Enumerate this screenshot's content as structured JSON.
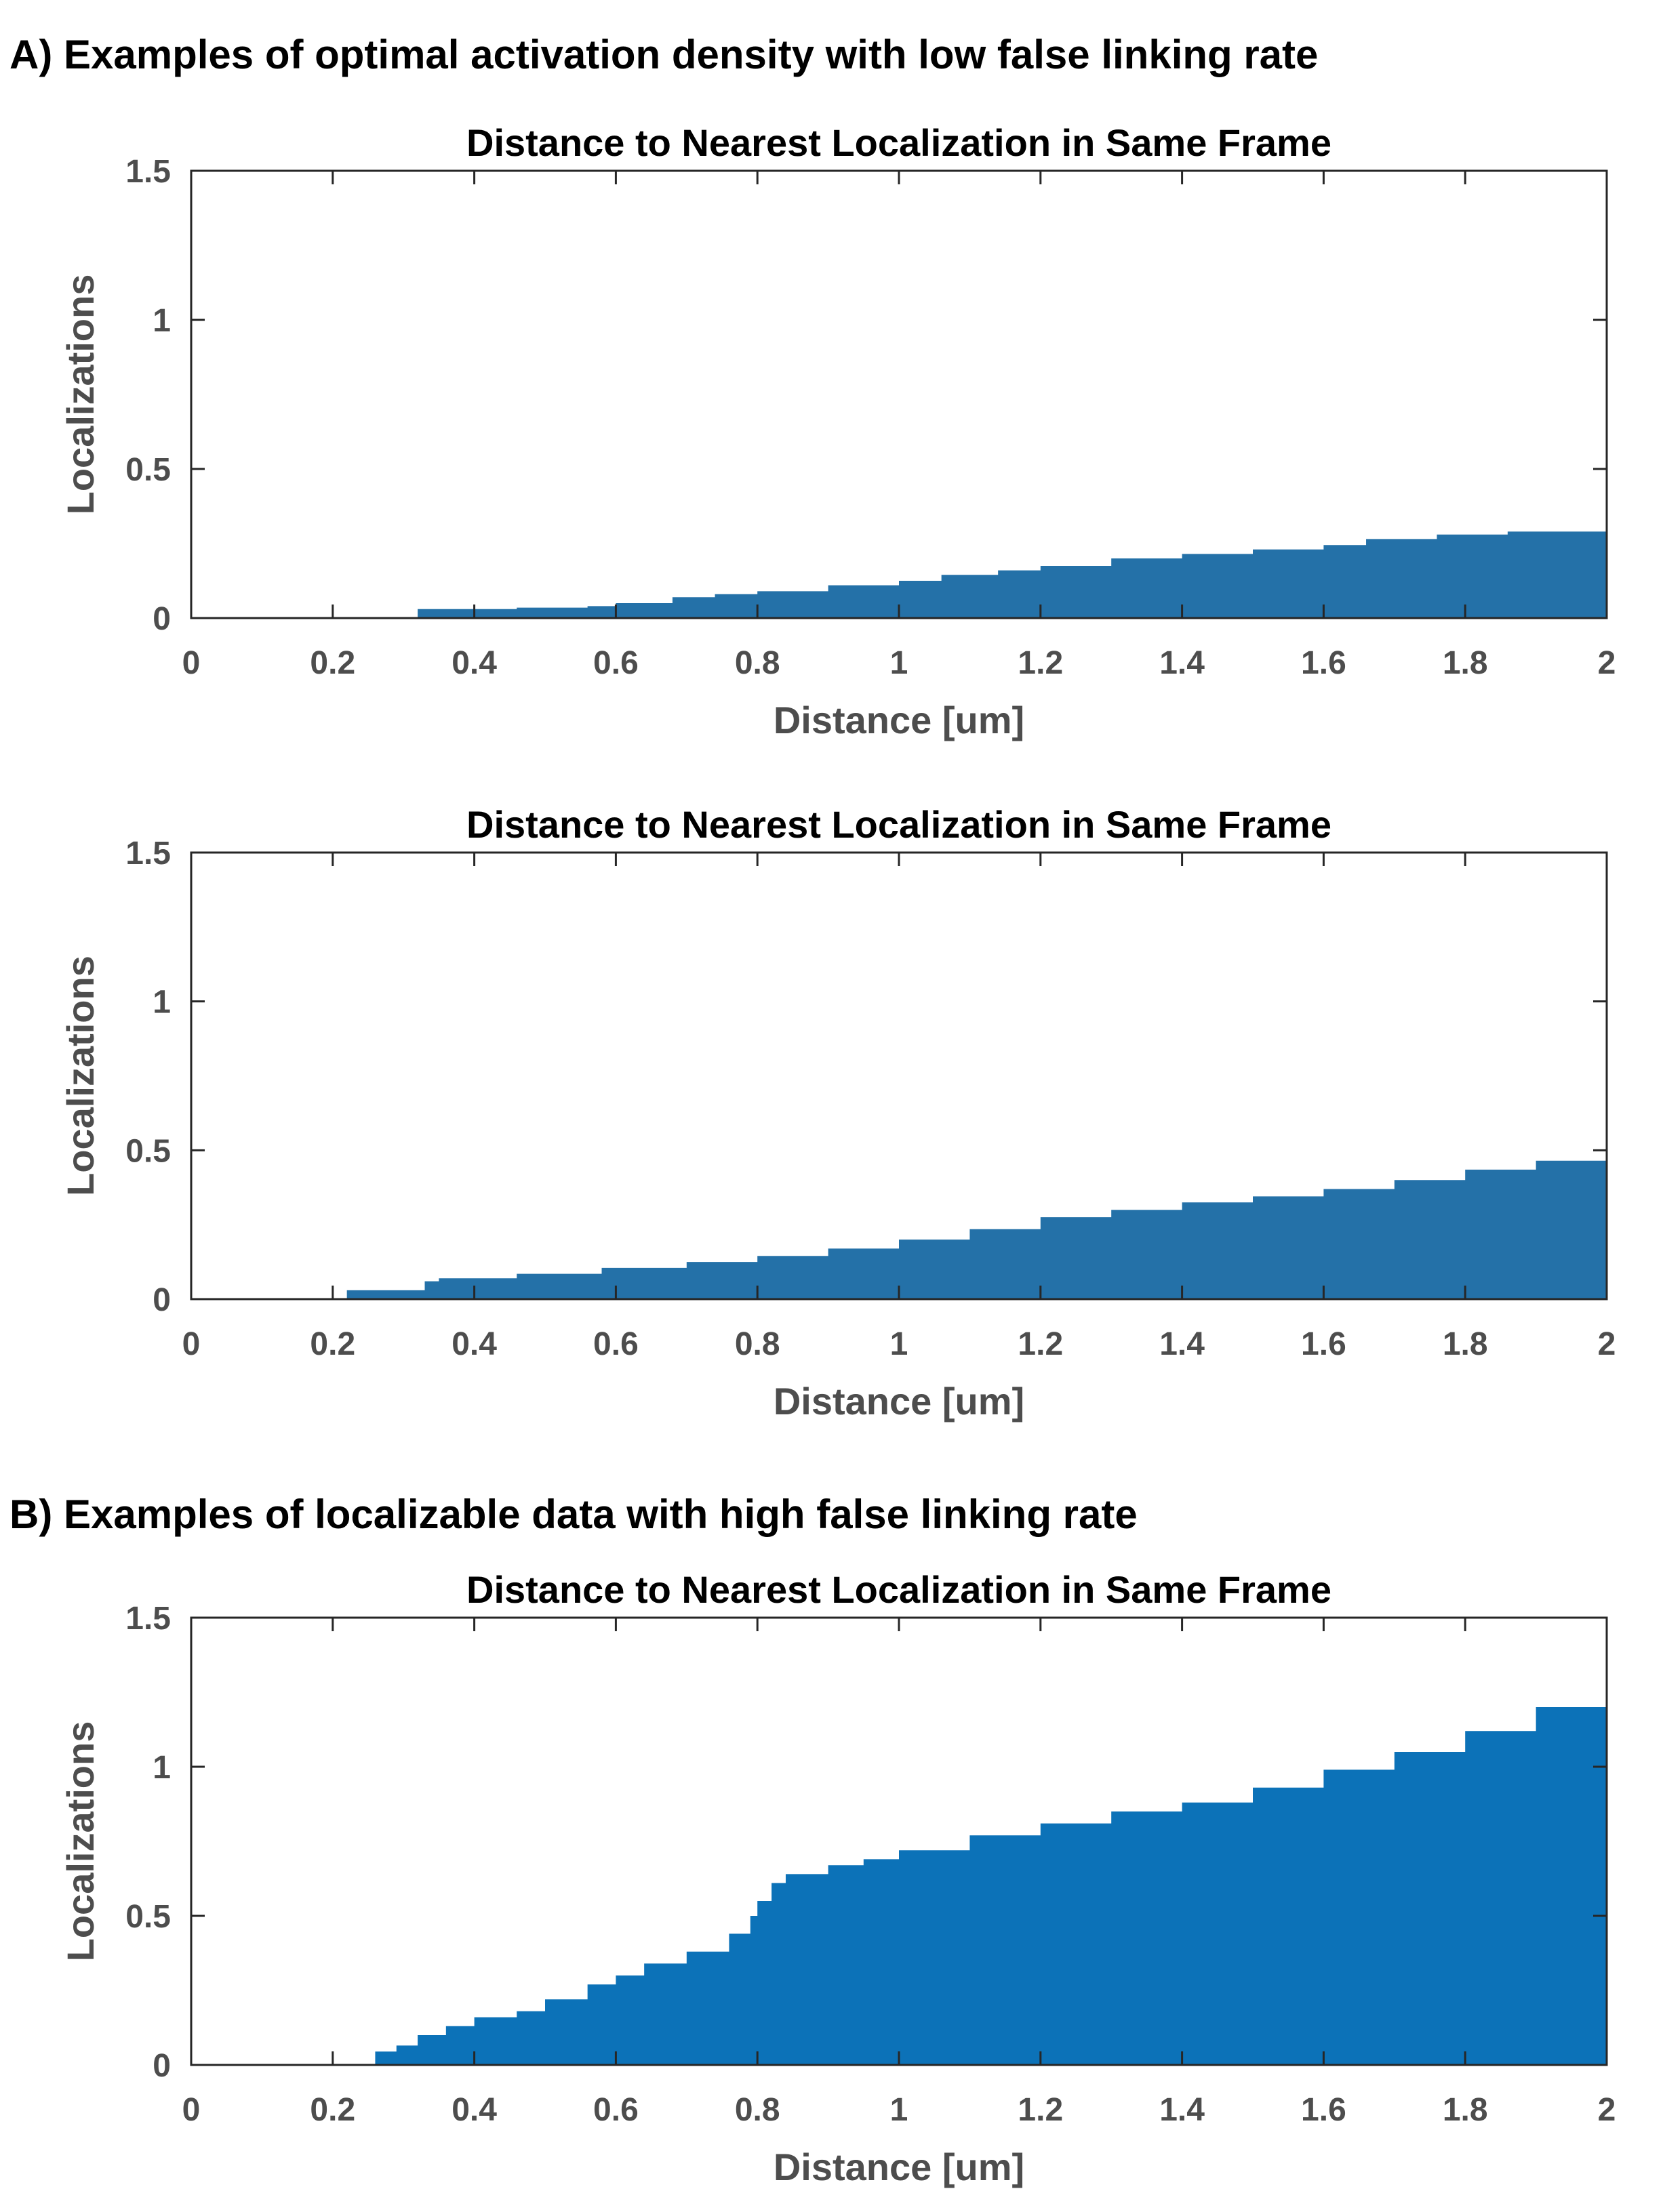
{
  "headings": {
    "a": "A) Examples of optimal activation density with low false linking rate",
    "b": "B) Examples of localizable data with high false linking rate"
  },
  "chart_data": [
    {
      "type": "area",
      "style": "stairs",
      "title": "Distance to Nearest Localization in Same Frame",
      "xlabel": "Distance [um]",
      "ylabel": "Localizations",
      "xlim": [
        0,
        2
      ],
      "ylim": [
        0,
        1.5
      ],
      "xticks": [
        "0",
        "0.2",
        "0.4",
        "0.6",
        "0.8",
        "1",
        "1.2",
        "1.4",
        "1.6",
        "1.8",
        "2"
      ],
      "yticks": [
        "0",
        "0.5",
        "1",
        "1.5"
      ],
      "grid": false,
      "color": "#2471a8",
      "x": [
        0,
        0.32,
        0.32,
        0.46,
        0.56,
        0.6,
        0.68,
        0.74,
        0.8,
        0.9,
        1.0,
        1.06,
        1.14,
        1.2,
        1.3,
        1.4,
        1.5,
        1.6,
        1.66,
        1.76,
        1.86,
        2.0
      ],
      "y": [
        0,
        0,
        0.03,
        0.035,
        0.04,
        0.05,
        0.07,
        0.08,
        0.09,
        0.11,
        0.125,
        0.145,
        0.16,
        0.175,
        0.2,
        0.215,
        0.23,
        0.245,
        0.265,
        0.28,
        0.29,
        0.31
      ]
    },
    {
      "type": "area",
      "style": "stairs",
      "title": "Distance to Nearest Localization in Same Frame",
      "xlabel": "Distance [um]",
      "ylabel": "Localizations",
      "xlim": [
        0,
        2
      ],
      "ylim": [
        0,
        1.5
      ],
      "xticks": [
        "0",
        "0.2",
        "0.4",
        "0.6",
        "0.8",
        "1",
        "1.2",
        "1.4",
        "1.6",
        "1.8",
        "2"
      ],
      "yticks": [
        "0",
        "0.5",
        "1",
        "1.5"
      ],
      "grid": false,
      "color": "#2471a8",
      "x": [
        0,
        0.22,
        0.22,
        0.33,
        0.35,
        0.46,
        0.58,
        0.7,
        0.8,
        0.9,
        1.0,
        1.1,
        1.2,
        1.3,
        1.4,
        1.5,
        1.6,
        1.7,
        1.8,
        1.9,
        2.0
      ],
      "y": [
        0,
        0,
        0.03,
        0.06,
        0.07,
        0.085,
        0.105,
        0.125,
        0.145,
        0.17,
        0.2,
        0.235,
        0.275,
        0.3,
        0.325,
        0.345,
        0.37,
        0.4,
        0.435,
        0.465,
        0.495
      ]
    },
    {
      "type": "area",
      "style": "stairs",
      "title": "Distance to Nearest Localization in Same Frame",
      "xlabel": "Distance [um]",
      "ylabel": "Localizations",
      "xlim": [
        0,
        2
      ],
      "ylim": [
        0,
        1.5
      ],
      "xticks": [
        "0",
        "0.2",
        "0.4",
        "0.6",
        "0.8",
        "1",
        "1.2",
        "1.4",
        "1.6",
        "1.8",
        "2"
      ],
      "yticks": [
        "0",
        "0.5",
        "1",
        "1.5"
      ],
      "grid": false,
      "color": "#0c72b8",
      "x": [
        0,
        0.26,
        0.26,
        0.29,
        0.32,
        0.36,
        0.4,
        0.46,
        0.5,
        0.56,
        0.6,
        0.64,
        0.7,
        0.76,
        0.79,
        0.8,
        0.82,
        0.84,
        0.9,
        0.95,
        1.0,
        1.1,
        1.2,
        1.3,
        1.4,
        1.5,
        1.6,
        1.7,
        1.8,
        1.9,
        2.0
      ],
      "y": [
        0,
        0,
        0.045,
        0.065,
        0.1,
        0.13,
        0.16,
        0.18,
        0.22,
        0.27,
        0.3,
        0.34,
        0.38,
        0.44,
        0.5,
        0.55,
        0.61,
        0.64,
        0.67,
        0.69,
        0.72,
        0.77,
        0.81,
        0.85,
        0.88,
        0.93,
        0.99,
        1.05,
        1.12,
        1.2,
        1.28
      ]
    }
  ]
}
